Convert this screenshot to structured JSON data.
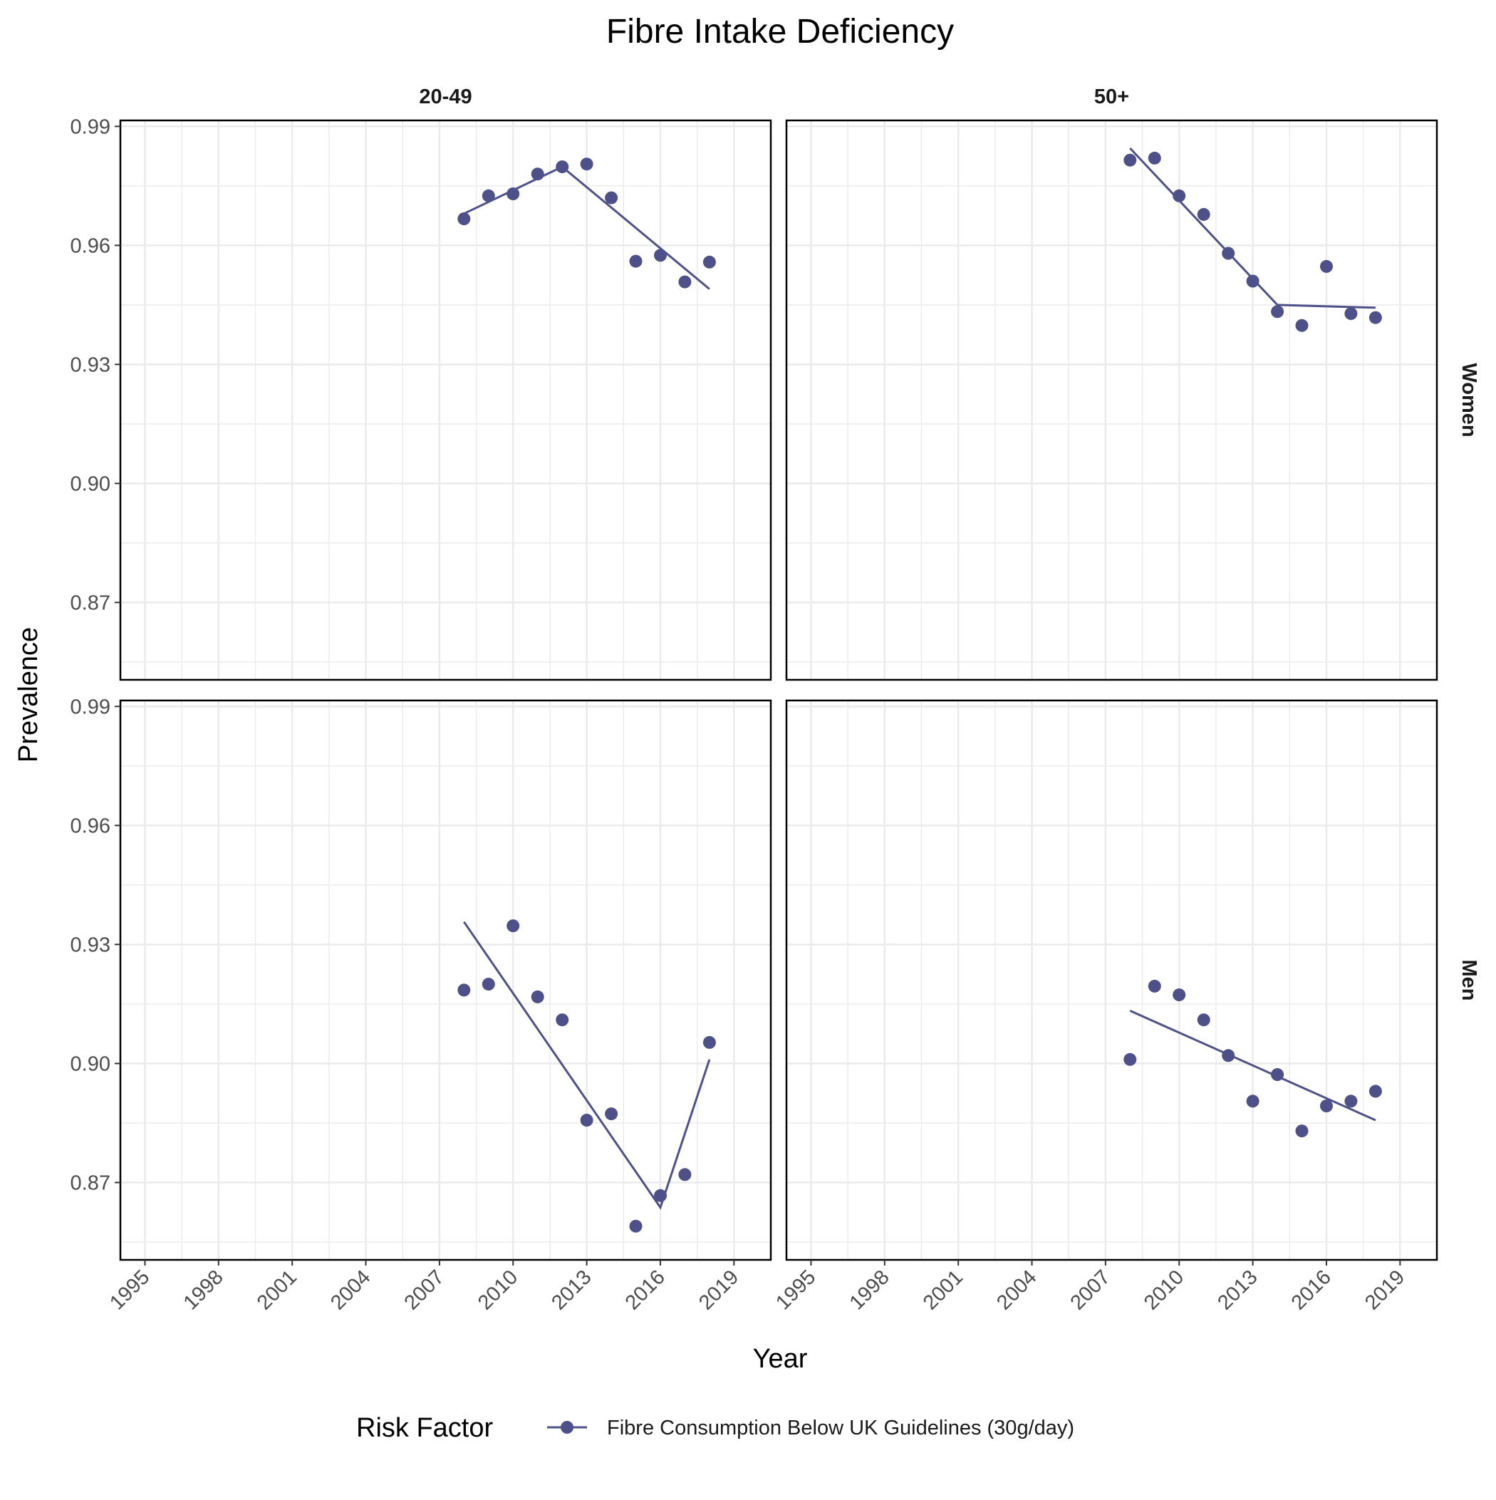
{
  "chart_data": {
    "type": "scatter",
    "title": "Fibre Intake Deficiency",
    "xlabel": "Year",
    "ylabel": "Prevalence",
    "xlim": [
      1994,
      2020.5
    ],
    "ylim": [
      0.8505,
      0.9915
    ],
    "x_ticks": [
      1995,
      1998,
      2001,
      2004,
      2007,
      2010,
      2013,
      2016,
      2019
    ],
    "x_tick_labels": [
      "1995",
      "1998",
      "2001",
      "2004",
      "2007",
      "2010",
      "2013",
      "2016",
      "2019"
    ],
    "y_ticks": [
      0.87,
      0.9,
      0.93,
      0.96,
      0.99
    ],
    "y_tick_labels": [
      "0.87",
      "0.90",
      "0.93",
      "0.96",
      "0.99"
    ],
    "facet_columns": [
      "20-49",
      "50+"
    ],
    "facet_rows": [
      "Women",
      "Men"
    ],
    "color": "#4e5189",
    "grid": true,
    "legend": {
      "title": "Risk Factor",
      "position": "bottom",
      "entries": [
        "Fibre Consumption Below UK Guidelines (30g/day)"
      ]
    },
    "panels": [
      {
        "column": "20-49",
        "row": "Women",
        "points": [
          [
            2008,
            0.9667
          ],
          [
            2009,
            0.9725
          ],
          [
            2010,
            0.973
          ],
          [
            2011,
            0.978
          ],
          [
            2012,
            0.9798
          ],
          [
            2013,
            0.9805
          ],
          [
            2014,
            0.972
          ],
          [
            2015,
            0.956
          ],
          [
            2016,
            0.9575
          ],
          [
            2017,
            0.9508
          ],
          [
            2018,
            0.9558
          ]
        ],
        "trend": [
          [
            2008,
            0.968
          ],
          [
            2012,
            0.9798
          ],
          [
            2018,
            0.949
          ]
        ]
      },
      {
        "column": "50+",
        "row": "Women",
        "points": [
          [
            2008,
            0.9815
          ],
          [
            2009,
            0.982
          ],
          [
            2010,
            0.9725
          ],
          [
            2011,
            0.9678
          ],
          [
            2012,
            0.958
          ],
          [
            2013,
            0.951
          ],
          [
            2014,
            0.9433
          ],
          [
            2015,
            0.9398
          ],
          [
            2016,
            0.9547
          ],
          [
            2017,
            0.9428
          ],
          [
            2018,
            0.9418
          ]
        ],
        "trend": [
          [
            2008,
            0.9845
          ],
          [
            2014,
            0.945
          ],
          [
            2018,
            0.9443
          ]
        ]
      },
      {
        "column": "20-49",
        "row": "Men",
        "points": [
          [
            2008,
            0.9185
          ],
          [
            2009,
            0.92
          ],
          [
            2010,
            0.9347
          ],
          [
            2011,
            0.9168
          ],
          [
            2012,
            0.911
          ],
          [
            2013,
            0.8857
          ],
          [
            2014,
            0.8873
          ],
          [
            2015,
            0.859
          ],
          [
            2016,
            0.8667
          ],
          [
            2017,
            0.872
          ],
          [
            2018,
            0.9053
          ]
        ],
        "trend": [
          [
            2008,
            0.9357
          ],
          [
            2016,
            0.8637
          ],
          [
            2018,
            0.901
          ]
        ]
      },
      {
        "column": "50+",
        "row": "Men",
        "points": [
          [
            2008,
            0.901
          ],
          [
            2009,
            0.9195
          ],
          [
            2010,
            0.9173
          ],
          [
            2011,
            0.911
          ],
          [
            2012,
            0.902
          ],
          [
            2013,
            0.8905
          ],
          [
            2014,
            0.8972
          ],
          [
            2015,
            0.883
          ],
          [
            2016,
            0.8893
          ],
          [
            2017,
            0.8905
          ],
          [
            2018,
            0.893
          ]
        ],
        "trend": [
          [
            2008,
            0.9133
          ],
          [
            2018,
            0.8857
          ]
        ]
      }
    ]
  }
}
